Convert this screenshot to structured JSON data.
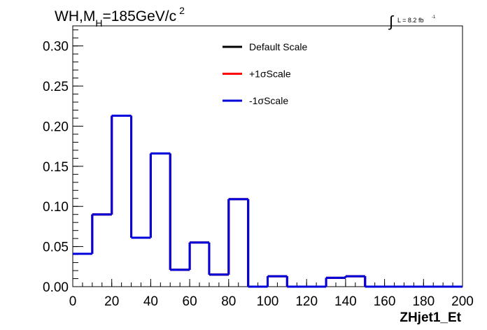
{
  "chart_data": {
    "type": "histogram",
    "title": {
      "main": "WH,M",
      "sub": "H",
      "rest": "=185GeV/c",
      "sup": "2"
    },
    "lumi": {
      "symbol": "∫",
      "text": "L = 8.2 fb",
      "sup": "-1"
    },
    "xlabel": "ZHjet1_Et",
    "ylabel": "",
    "xlim": [
      0,
      200
    ],
    "ylim": [
      0,
      0.325
    ],
    "xticks": [
      0,
      20,
      40,
      60,
      80,
      100,
      120,
      140,
      160,
      180,
      200
    ],
    "xtick_labels": [
      "0",
      "20",
      "40",
      "60",
      "80",
      "100",
      "120",
      "140",
      "160",
      "180",
      "200"
    ],
    "yticks": [
      0,
      0.05,
      0.1,
      0.15,
      0.2,
      0.25,
      0.3
    ],
    "ytick_labels": [
      "0.00",
      "0.05",
      "0.10",
      "0.15",
      "0.20",
      "0.25",
      "0.30"
    ],
    "bin_edges": [
      0,
      10,
      20,
      30,
      40,
      50,
      60,
      70,
      80,
      90,
      100,
      110,
      120,
      130,
      140,
      150,
      160,
      170,
      180,
      190,
      200
    ],
    "legend_position": "top-center",
    "series": [
      {
        "name": "Default Scale",
        "color": "#000000",
        "values": [
          0.041,
          0.09,
          0.213,
          0.061,
          0.166,
          0.021,
          0.055,
          0.015,
          0.109,
          0.0,
          0.013,
          0.0,
          0.0,
          0.011,
          0.013,
          0.0,
          0.0,
          0.0,
          0.0,
          0.0
        ]
      },
      {
        "name": "+1σScale",
        "color": "#ff0000",
        "values": [
          0.041,
          0.09,
          0.213,
          0.061,
          0.166,
          0.021,
          0.055,
          0.015,
          0.109,
          0.0,
          0.013,
          0.0,
          0.0,
          0.011,
          0.013,
          0.0,
          0.0,
          0.0,
          0.0,
          0.0
        ]
      },
      {
        "name": "-1σScale",
        "color": "#0000dd",
        "values": [
          0.041,
          0.09,
          0.213,
          0.061,
          0.166,
          0.021,
          0.055,
          0.015,
          0.109,
          0.0,
          0.013,
          0.0,
          0.0,
          0.011,
          0.013,
          0.0,
          0.0,
          0.0,
          0.0,
          0.0
        ]
      }
    ]
  }
}
